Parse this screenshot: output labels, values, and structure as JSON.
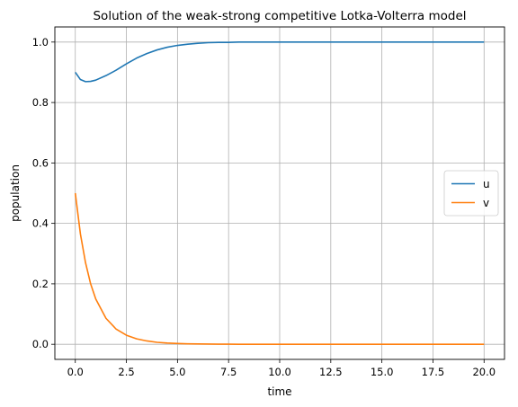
{
  "chart_data": {
    "type": "line",
    "title": "Solution of the weak-strong competitive Lotka-Volterra model",
    "xlabel": "time",
    "ylabel": "population",
    "xlim": [
      -1.0,
      21.0
    ],
    "ylim": [
      -0.05,
      1.05
    ],
    "xticks": [
      0.0,
      2.5,
      5.0,
      7.5,
      10.0,
      12.5,
      15.0,
      17.5,
      20.0
    ],
    "xtick_labels": [
      "0.0",
      "2.5",
      "5.0",
      "7.5",
      "10.0",
      "12.5",
      "15.0",
      "17.5",
      "20.0"
    ],
    "yticks": [
      0.0,
      0.2,
      0.4,
      0.6,
      0.8,
      1.0
    ],
    "ytick_labels": [
      "0.0",
      "0.2",
      "0.4",
      "0.6",
      "0.8",
      "1.0"
    ],
    "grid": true,
    "legend_position": "center-right",
    "x": [
      0,
      0.25,
      0.5,
      0.75,
      1.0,
      1.5,
      2.0,
      2.5,
      3.0,
      3.5,
      4.0,
      4.5,
      5.0,
      5.5,
      6.0,
      6.5,
      7.0,
      7.5,
      8.0,
      9.0,
      10.0,
      11.0,
      12.0,
      13.0,
      14.0,
      15.0,
      16.0,
      17.0,
      18.0,
      19.0,
      20.0
    ],
    "series": [
      {
        "name": "u",
        "color": "#1f77b4",
        "values": [
          0.9,
          0.876,
          0.869,
          0.87,
          0.874,
          0.889,
          0.907,
          0.928,
          0.947,
          0.962,
          0.974,
          0.983,
          0.989,
          0.993,
          0.996,
          0.998,
          0.999,
          0.999,
          1.0,
          1.0,
          1.0,
          1.0,
          1.0,
          1.0,
          1.0,
          1.0,
          1.0,
          1.0,
          1.0,
          1.0,
          1.0
        ]
      },
      {
        "name": "v",
        "color": "#ff7f0e",
        "values": [
          0.5,
          0.365,
          0.27,
          0.2,
          0.15,
          0.086,
          0.05,
          0.03,
          0.018,
          0.011,
          0.0065,
          0.004,
          0.0025,
          0.0015,
          0.001,
          0.0006,
          0.0004,
          0.0002,
          0.0001,
          0.0,
          0.0,
          0.0,
          0.0,
          0.0,
          0.0,
          0.0,
          0.0,
          0.0,
          0.0,
          0.0,
          0.0
        ]
      }
    ]
  }
}
